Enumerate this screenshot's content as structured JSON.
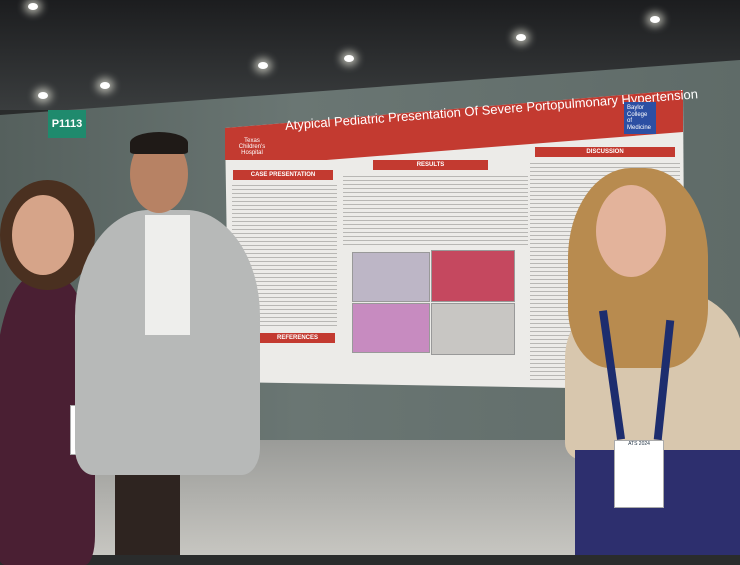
{
  "scene": {
    "description_colors": {
      "wall": "#66726f",
      "poster_red": "#c33a30",
      "sign_green": "#1f8a6d",
      "floor": "#bdbcb7"
    }
  },
  "sign": {
    "label": "P1113"
  },
  "poster": {
    "title": "Atypical Pediatric Presentation Of Severe Portopulmonary Hypertension",
    "left_logo": "Texas Children's Hospital",
    "right_logo": "Baylor College of Medicine",
    "sections": {
      "case": "CASE PRESENTATION",
      "results": "RESULTS",
      "discussion": "DISCUSSION",
      "references": "REFERENCES"
    }
  },
  "badges": {
    "right": "ATS 2024"
  }
}
